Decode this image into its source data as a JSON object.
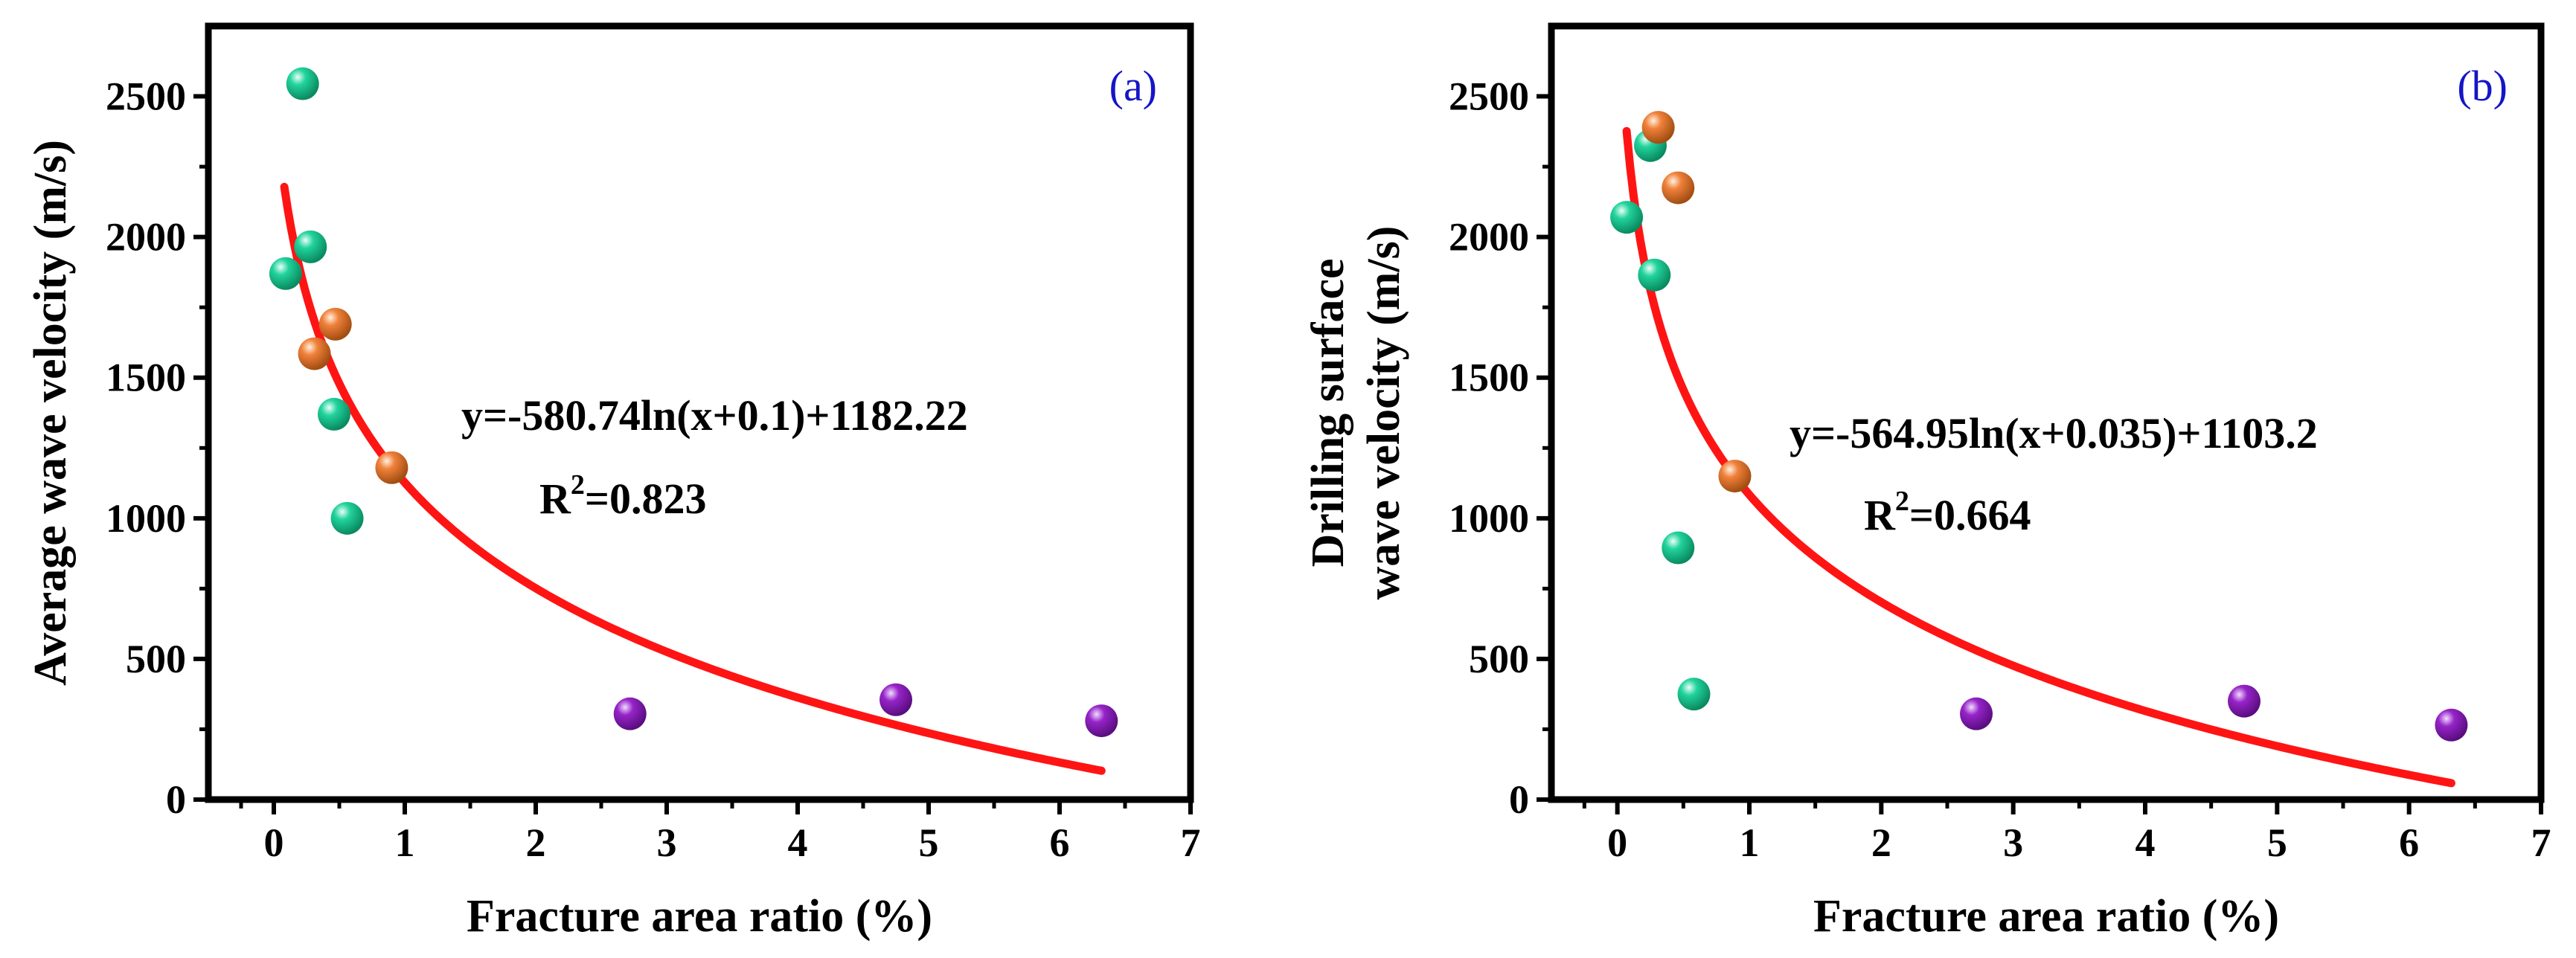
{
  "colors": {
    "green": "#21d39c",
    "orange": "#f0813a",
    "purple": "#9624c8",
    "fit": "#ff1414",
    "panel_label": "#1515c8",
    "axis": "#000000"
  },
  "chart_data": [
    {
      "type": "scatter",
      "panel_label": "(a)",
      "title": "",
      "xlabel": "Fracture area ratio (%)",
      "ylabel_lines": [
        "Average wave velocity (m/s)"
      ],
      "xlim": [
        -0.5,
        7
      ],
      "ylim": [
        0,
        2750
      ],
      "xticks": [
        0,
        1,
        2,
        3,
        4,
        5,
        6,
        7
      ],
      "yticks": [
        0,
        500,
        1000,
        1500,
        2000,
        2500
      ],
      "grid": false,
      "series": [
        {
          "name": "green",
          "color": "#21d39c",
          "points": [
            {
              "x": 0.22,
              "y": 2545
            },
            {
              "x": 0.28,
              "y": 1965
            },
            {
              "x": 0.09,
              "y": 1870
            },
            {
              "x": 0.46,
              "y": 1370
            },
            {
              "x": 0.56,
              "y": 1000
            }
          ]
        },
        {
          "name": "orange",
          "color": "#f0813a",
          "points": [
            {
              "x": 0.47,
              "y": 1690
            },
            {
              "x": 0.31,
              "y": 1585
            },
            {
              "x": 0.9,
              "y": 1180
            }
          ]
        },
        {
          "name": "purple",
          "color": "#9624c8",
          "points": [
            {
              "x": 2.72,
              "y": 305
            },
            {
              "x": 4.75,
              "y": 355
            },
            {
              "x": 6.32,
              "y": 280
            }
          ]
        }
      ],
      "fit": {
        "a": -580.74,
        "b": 0.1,
        "c": 1182.22,
        "x_range": [
          0.08,
          6.32
        ],
        "equation": "y=-580.74ln(x+0.1)+1182.22",
        "r2_prefix": "R",
        "r2_sup": "2",
        "r2_value": "=0.823"
      }
    },
    {
      "type": "scatter",
      "panel_label": "(b)",
      "title": "",
      "xlabel": "Fracture area ratio (%)",
      "ylabel_lines": [
        "Drilling surface",
        "wave velocity (m/s)"
      ],
      "xlim": [
        -0.5,
        7
      ],
      "ylim": [
        0,
        2750
      ],
      "xticks": [
        0,
        1,
        2,
        3,
        4,
        5,
        6,
        7
      ],
      "yticks": [
        0,
        500,
        1000,
        1500,
        2000,
        2500
      ],
      "grid": false,
      "series": [
        {
          "name": "green",
          "color": "#21d39c",
          "points": [
            {
              "x": 0.25,
              "y": 2325
            },
            {
              "x": 0.07,
              "y": 2070
            },
            {
              "x": 0.28,
              "y": 1865
            },
            {
              "x": 0.46,
              "y": 895
            },
            {
              "x": 0.58,
              "y": 375
            }
          ]
        },
        {
          "name": "orange",
          "color": "#f0813a",
          "points": [
            {
              "x": 0.31,
              "y": 2390
            },
            {
              "x": 0.46,
              "y": 2175
            },
            {
              "x": 0.89,
              "y": 1150
            }
          ]
        },
        {
          "name": "purple",
          "color": "#9624c8",
          "points": [
            {
              "x": 2.72,
              "y": 305
            },
            {
              "x": 4.75,
              "y": 350
            },
            {
              "x": 6.32,
              "y": 265
            }
          ]
        }
      ],
      "fit": {
        "a": -564.95,
        "b": 0.035,
        "c": 1103.2,
        "x_range": [
          0.07,
          6.32
        ],
        "equation": "y=-564.95ln(x+0.035)+1103.2",
        "r2_prefix": "R",
        "r2_sup": "2",
        "r2_value": "=0.664"
      }
    }
  ]
}
